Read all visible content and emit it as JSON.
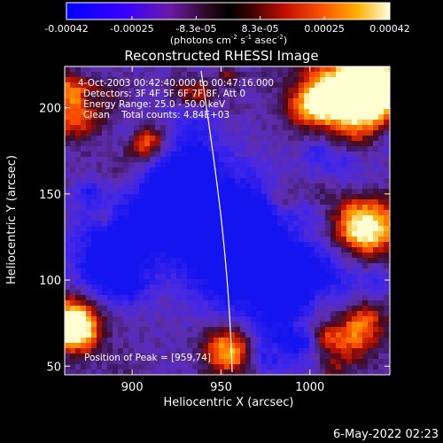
{
  "chart_data": {
    "type": "heatmap",
    "title": "Reconstructed RHESSI Image",
    "xlabel": "Heliocentric X (arcsec)",
    "ylabel": "Heliocentric Y (arcsec)",
    "x_ticks": [
      "900",
      "950",
      "1000"
    ],
    "y_ticks": [
      "50",
      "100",
      "150",
      "200"
    ],
    "xlim": [
      862,
      1045
    ],
    "ylim": [
      45,
      224
    ],
    "colorbar": {
      "ticks": [
        "-0.00042",
        "-0.00025",
        "-8.3e-05",
        "8.3e-05",
        "0.00025",
        "0.00042"
      ],
      "unit_label": "(photons cm",
      "unit_exp1": "-2",
      "unit_mid": " s",
      "unit_exp2": "-1",
      "unit_end": " asec",
      "unit_exp3": "-2",
      "unit_close": ")",
      "range": [
        -0.00042,
        0.00042
      ]
    },
    "info_lines": [
      "4-Oct-2003 00:42:40.000 to 00:47:16.000",
      "Detectors: 3F 4F 5F 6F 7F 8F, Att 0",
      "Energy Range: 25.0 - 50.0 keV",
      "Clean    Total counts: 4.84E+03"
    ],
    "peak_label": "Position of Peak = [959,74]",
    "peak": [
      959,
      74
    ]
  },
  "footer": {
    "date": "6-May-2022 02:23"
  }
}
